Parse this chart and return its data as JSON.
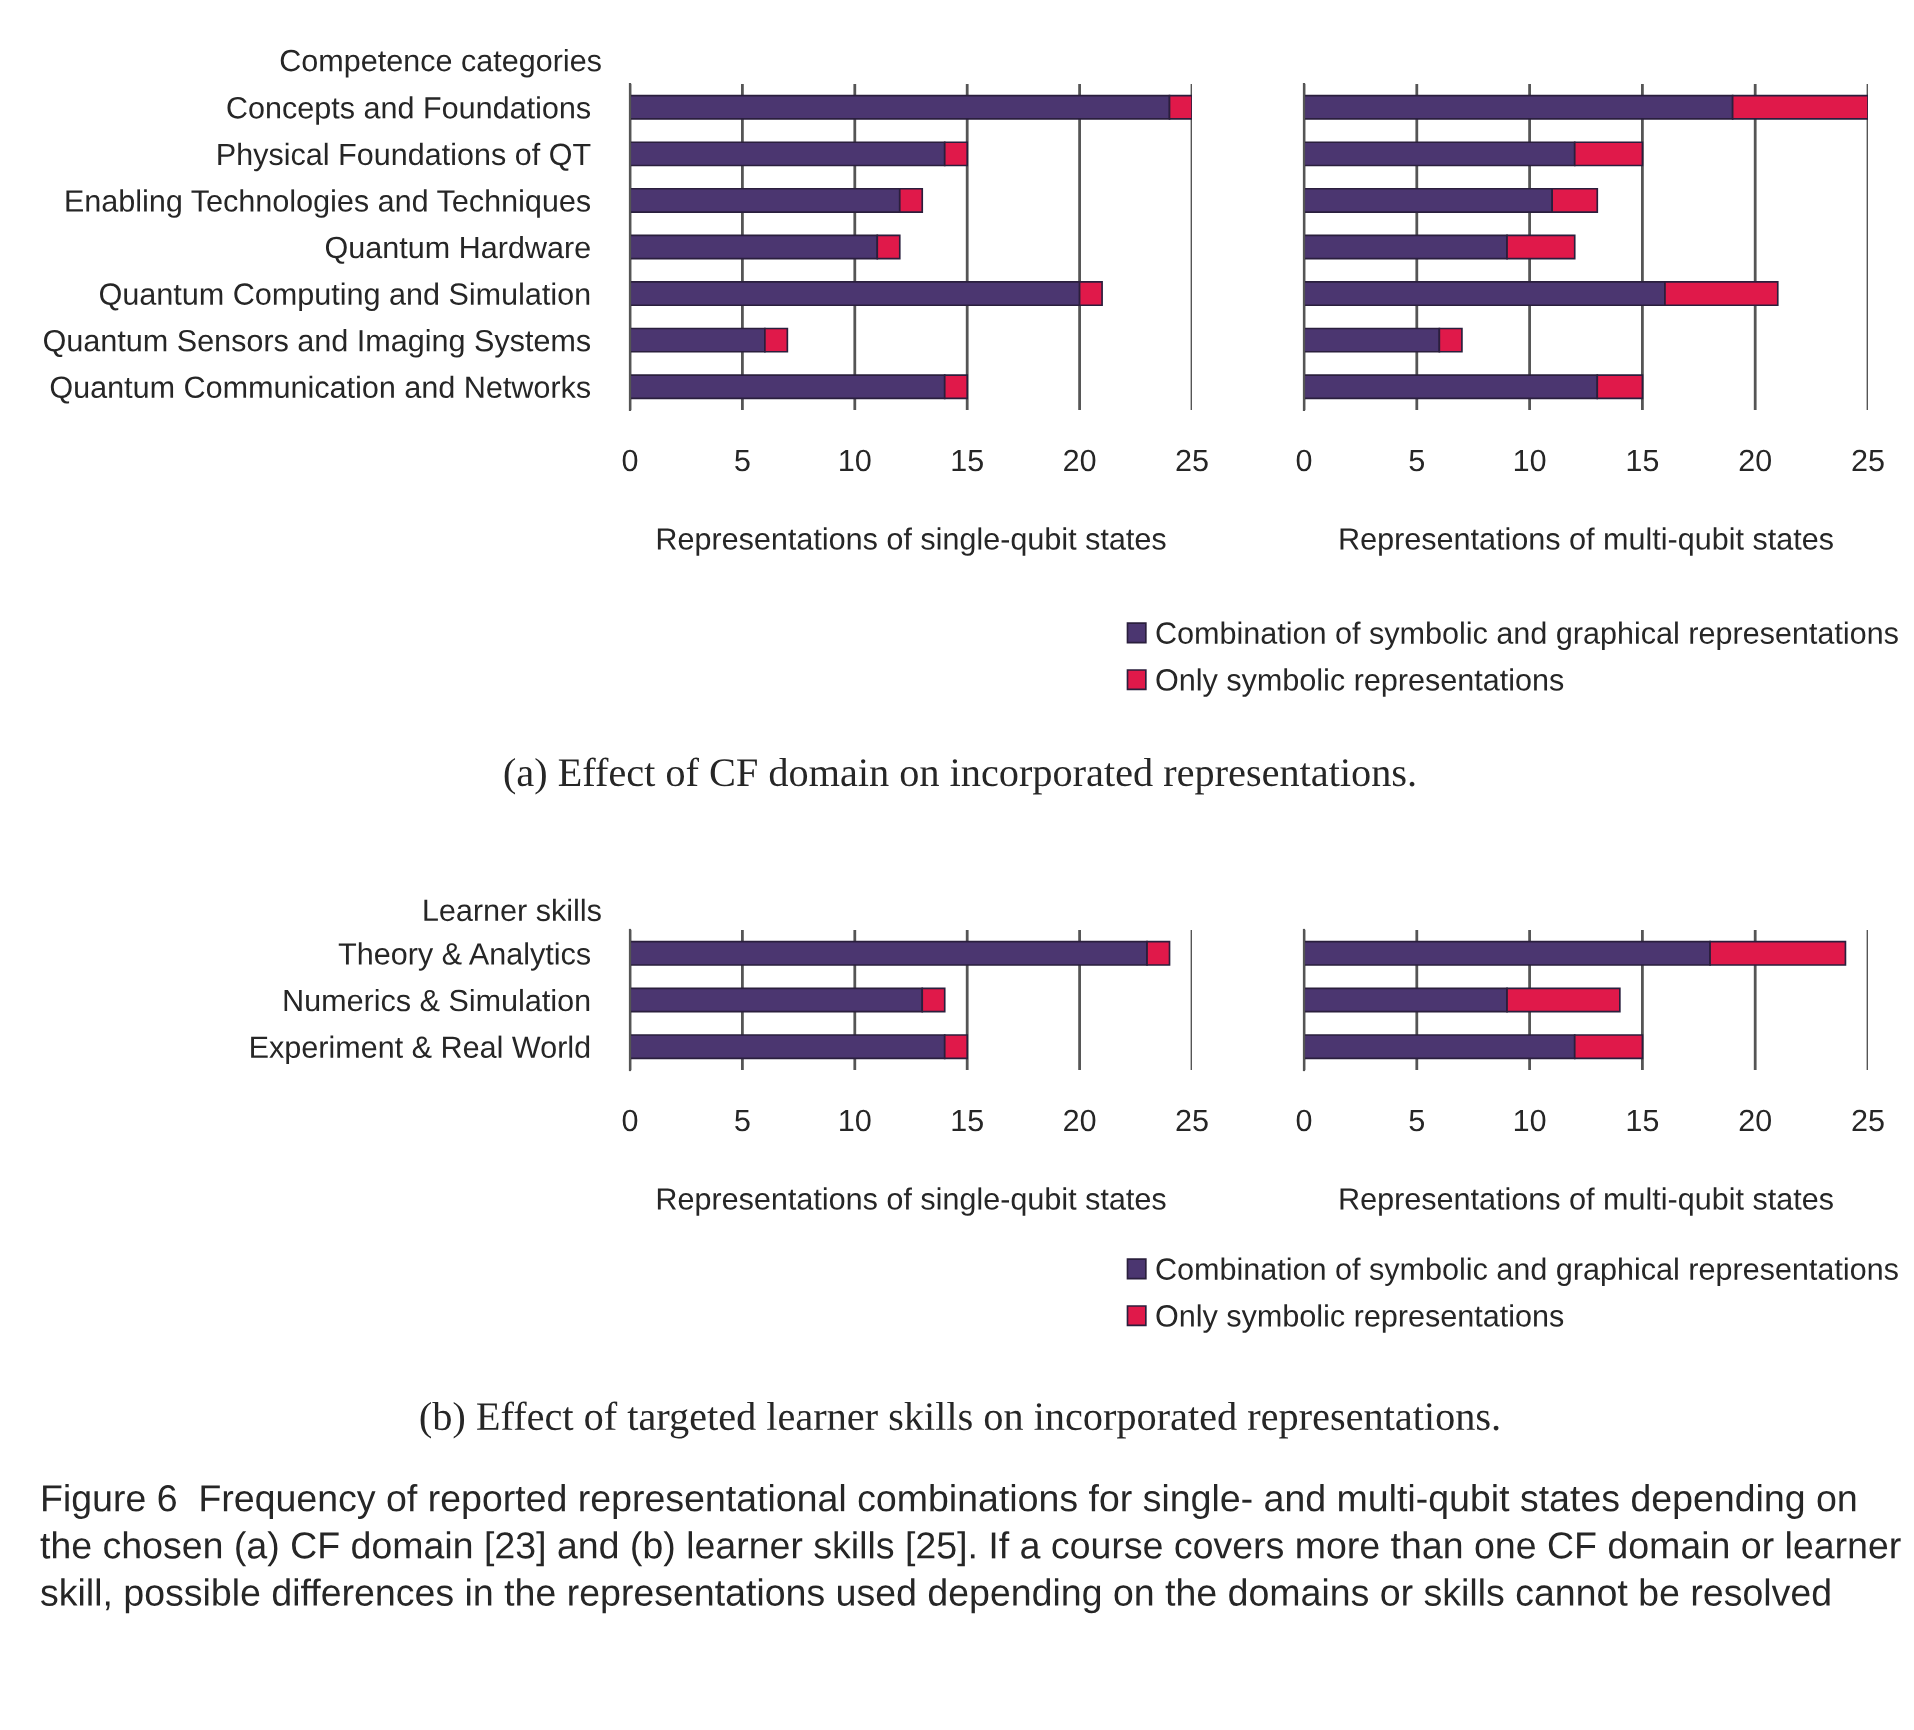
{
  "chart_data": [
    {
      "type": "bar",
      "orientation": "horizontal",
      "stacked": true,
      "ylabel": "Competence categories",
      "xlabel": "Representations of single-qubit states",
      "categories": [
        "Concepts and Foundations",
        "Physical Foundations of QT",
        "Enabling Technologies and Techniques",
        "Quantum Hardware",
        "Quantum Computing and Simulation",
        "Quantum Sensors and Imaging Systems",
        "Quantum Communication and Networks"
      ],
      "series": [
        {
          "color": "#4b3670",
          "values": [
            24,
            14,
            12,
            11,
            20,
            6,
            14
          ]
        },
        {
          "color": "#e0194a",
          "values": [
            1,
            1,
            1,
            1,
            1,
            1,
            1
          ]
        }
      ],
      "xlim": [
        0,
        25
      ],
      "xticks": [
        0,
        5,
        10,
        15,
        20,
        25
      ],
      "grid": "x"
    },
    {
      "type": "bar",
      "orientation": "horizontal",
      "stacked": true,
      "xlabel": "Representations of multi-qubit states",
      "categories": [
        null,
        null,
        null,
        null,
        null,
        null,
        null
      ],
      "series": [
        {
          "name": "Combination of symbolic and graphical representations",
          "color": "#4b3670",
          "values": [
            19,
            12,
            11,
            9,
            16,
            6,
            13
          ]
        },
        {
          "name": "Only symbolic representations",
          "color": "#e0194a",
          "values": [
            6,
            3,
            2,
            3,
            5,
            1,
            2
          ]
        }
      ],
      "xlim": [
        0,
        25
      ],
      "xticks": [
        0,
        5,
        10,
        15,
        20,
        25
      ],
      "grid": "x",
      "tick_labels": "x",
      "legend": "bottom",
      "annotations": [
        "(a) Effect of CF domain on incorporated representations."
      ]
    },
    {
      "type": "bar",
      "orientation": "horizontal",
      "stacked": true,
      "ylabel": "Learner skills",
      "xlabel": "Representations of single-qubit states",
      "categories": [
        "Theory & Analytics",
        "Numerics & Simulation",
        "Experiment & Real World"
      ],
      "series": [
        {
          "color": "#4b3670",
          "values": [
            23,
            13,
            14
          ]
        },
        {
          "color": "#e0194a",
          "values": [
            1,
            1,
            1
          ]
        }
      ],
      "xlim": [
        0,
        25
      ],
      "xticks": [
        0,
        5,
        10,
        15,
        20,
        25
      ],
      "grid": "x"
    },
    {
      "type": "bar",
      "orientation": "horizontal",
      "stacked": true,
      "xlabel": "Representations of multi-qubit states",
      "categories": [
        null,
        null,
        null
      ],
      "series": [
        {
          "name": "Combination of symbolic and graphical representations",
          "color": "#4b3670",
          "values": [
            18,
            9,
            12
          ]
        },
        {
          "name": "Only symbolic representations",
          "color": "#e0194a",
          "values": [
            6,
            5,
            3
          ]
        }
      ],
      "xlim": [
        0,
        25
      ],
      "xticks": [
        0,
        5,
        10,
        15,
        20,
        25
      ],
      "grid": "x",
      "tick_labels": "x",
      "legend": "bottom",
      "annotations": [
        "(b) Effect of targeted learner skills on incorporated representations.",
        "Figure 6  Frequency of reported representational combinations for single- and multi-qubit states depending on the chosen (a) CF domain [23] and (b) learner skills [25]. If a course covers more than one CF domain or learner skill, possible differences in the representations used depending on the domains or skills cannot be resolved"
      ]
    }
  ]
}
